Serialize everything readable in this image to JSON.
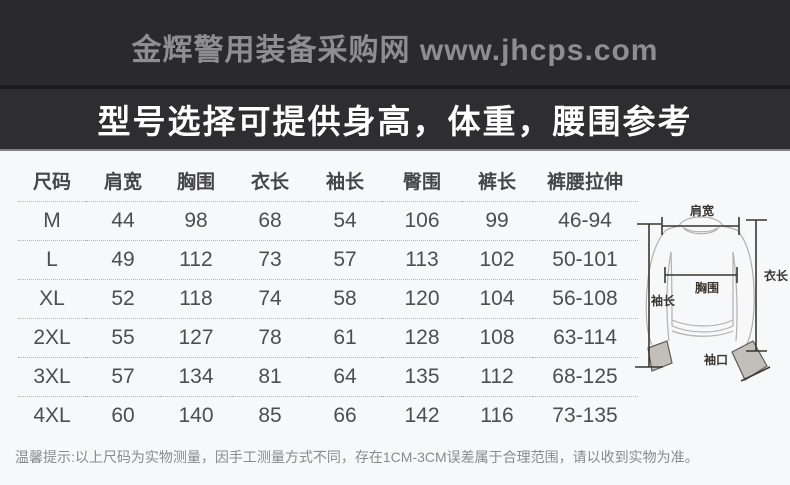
{
  "header": {
    "brand": "金辉警用装备采购网 www.jhcps.com"
  },
  "banner": {
    "title": "型号选择可提供身高，体重，腰围参考"
  },
  "size_table": {
    "columns": [
      "尺码",
      "肩宽",
      "胸围",
      "衣长",
      "袖长",
      "臀围",
      "裤长",
      "裤腰拉伸"
    ],
    "rows": [
      [
        "M",
        "44",
        "98",
        "68",
        "54",
        "106",
        "99",
        "46-94"
      ],
      [
        "L",
        "49",
        "112",
        "73",
        "57",
        "113",
        "102",
        "50-101"
      ],
      [
        "XL",
        "52",
        "118",
        "74",
        "58",
        "120",
        "104",
        "56-108"
      ],
      [
        "2XL",
        "55",
        "127",
        "78",
        "61",
        "128",
        "108",
        "63-114"
      ],
      [
        "3XL",
        "57",
        "134",
        "81",
        "64",
        "135",
        "112",
        "68-125"
      ],
      [
        "4XL",
        "60",
        "140",
        "85",
        "66",
        "142",
        "116",
        "73-135"
      ]
    ]
  },
  "diagram": {
    "labels": {
      "shoulder": "肩宽",
      "length": "衣长",
      "chest": "胸围",
      "sleeve": "袖长",
      "cuff": "袖口"
    }
  },
  "note": {
    "text": "温馨提示:以上尺码为实物测量，因手工测量方式不同，存在1CM-3CM误差属于合理范围，请以收到实物为准。"
  },
  "colors": {
    "header_bg": "#2a2a2c",
    "header_text": "#8e8e90",
    "banner_bg": "#2e2e30",
    "banner_text": "#ffffff",
    "page_bg": "#f7f8fa",
    "table_header_text": "#46464a",
    "table_value_text": "#4e4e52",
    "dotted_line": "#b2b2b2",
    "note_text": "#8a8a8a"
  }
}
